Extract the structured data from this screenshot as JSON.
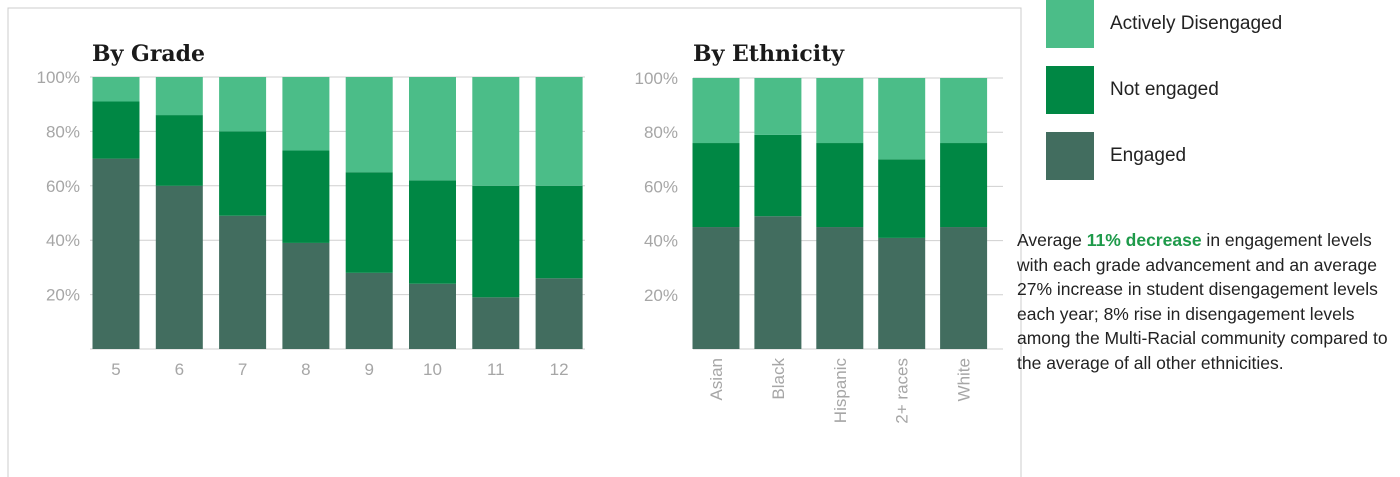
{
  "colors": {
    "engaged": "#426d5f",
    "not_engaged": "#008744",
    "actively_disengaged": "#4bbd88",
    "highlight": "#1e9a4a"
  },
  "legend": [
    {
      "label": "Actively Disengaged",
      "color": "#4bbd88"
    },
    {
      "label": "Not engaged",
      "color": "#008744"
    },
    {
      "label": "Engaged",
      "color": "#426d5f"
    }
  ],
  "note": {
    "prefix": "Average ",
    "highlight": "11% decrease",
    "rest": " in engagement levels with each grade advancement and an average 27% increase in student disengagement levels each year; 8% rise in disengagement levels among the Multi-Racial community compared to the average of all other ethnicities."
  },
  "chart_data": [
    {
      "type": "bar",
      "stacked": true,
      "title": "By Grade",
      "categories": [
        "5",
        "6",
        "7",
        "8",
        "9",
        "10",
        "11",
        "12"
      ],
      "y_tick_labels": [
        "100%",
        "80%",
        "60%",
        "40%",
        "20%"
      ],
      "ylim": [
        0,
        100
      ],
      "grid": true,
      "series": [
        {
          "name": "Engaged",
          "values": [
            70,
            60,
            49,
            39,
            28,
            24,
            19,
            26
          ]
        },
        {
          "name": "Not engaged",
          "values": [
            21,
            26,
            31,
            34,
            37,
            38,
            41,
            34
          ]
        },
        {
          "name": "Actively Disengaged",
          "values": [
            9,
            14,
            20,
            27,
            35,
            38,
            40,
            40
          ]
        }
      ]
    },
    {
      "type": "bar",
      "stacked": true,
      "title": "By Ethnicity",
      "categories": [
        "Asian",
        "Black",
        "Hispanic",
        "2+ races",
        "White"
      ],
      "y_tick_labels": [
        "100%",
        "80%",
        "60%",
        "40%",
        "20%"
      ],
      "ylim": [
        0,
        100
      ],
      "grid": true,
      "series": [
        {
          "name": "Engaged",
          "values": [
            45,
            49,
            45,
            41,
            45
          ]
        },
        {
          "name": "Not engaged",
          "values": [
            31,
            30,
            31,
            29,
            31
          ]
        },
        {
          "name": "Actively Disengaged",
          "values": [
            24,
            21,
            24,
            30,
            24
          ]
        }
      ]
    }
  ]
}
